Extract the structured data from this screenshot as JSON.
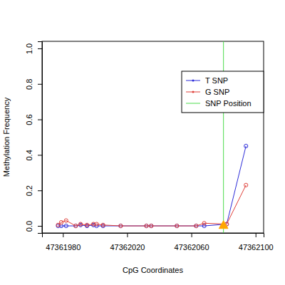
{
  "chart_data": {
    "type": "line",
    "x_label": "CpG Coordinates",
    "y_label": "Methylation Frequency",
    "x": [
      47361977,
      47361979,
      47361982,
      47361988,
      47361991,
      47361995,
      47361999,
      47362001,
      47362005,
      47362016,
      47362032,
      47362035,
      47362051,
      47362063,
      47362068,
      47362082,
      47362094
    ],
    "series": [
      {
        "name": "T SNP",
        "color": "#2b2bd9",
        "marker": "circle",
        "line_style": "solid",
        "values": [
          0,
          0,
          0,
          0,
          0.005,
          0,
          0.005,
          0,
          0,
          0,
          0,
          0,
          0,
          0,
          0,
          0.01,
          0.45
        ]
      },
      {
        "name": "G SNP",
        "color": "#e0403a",
        "marker": "circle",
        "line_style": "solid",
        "values": [
          0.005,
          0.02,
          0.03,
          0,
          0.01,
          0.005,
          0.01,
          0.01,
          0.005,
          0,
          0,
          0,
          0,
          0,
          0.015,
          0.01,
          0.23
        ]
      },
      {
        "name": "SNP Position",
        "type": "vline",
        "color": "#4ddc4d",
        "line_style": "solid",
        "x": [
          47362080
        ]
      },
      {
        "type": "scatter",
        "marker": "triangle",
        "color": "#ffa500",
        "x": [
          47362080
        ],
        "values": [
          0
        ]
      }
    ],
    "xlim": [
      47361967,
      47362105
    ],
    "ylim": [
      -0.04,
      1.04
    ],
    "xticks": [
      47361980,
      47362020,
      47362060,
      47362100
    ],
    "yticks": [
      {
        "value": 0,
        "label": "0.0"
      },
      0.2,
      0.4,
      0.6,
      0.8,
      {
        "value": 1,
        "label": "1.0"
      }
    ],
    "legend": "right"
  }
}
